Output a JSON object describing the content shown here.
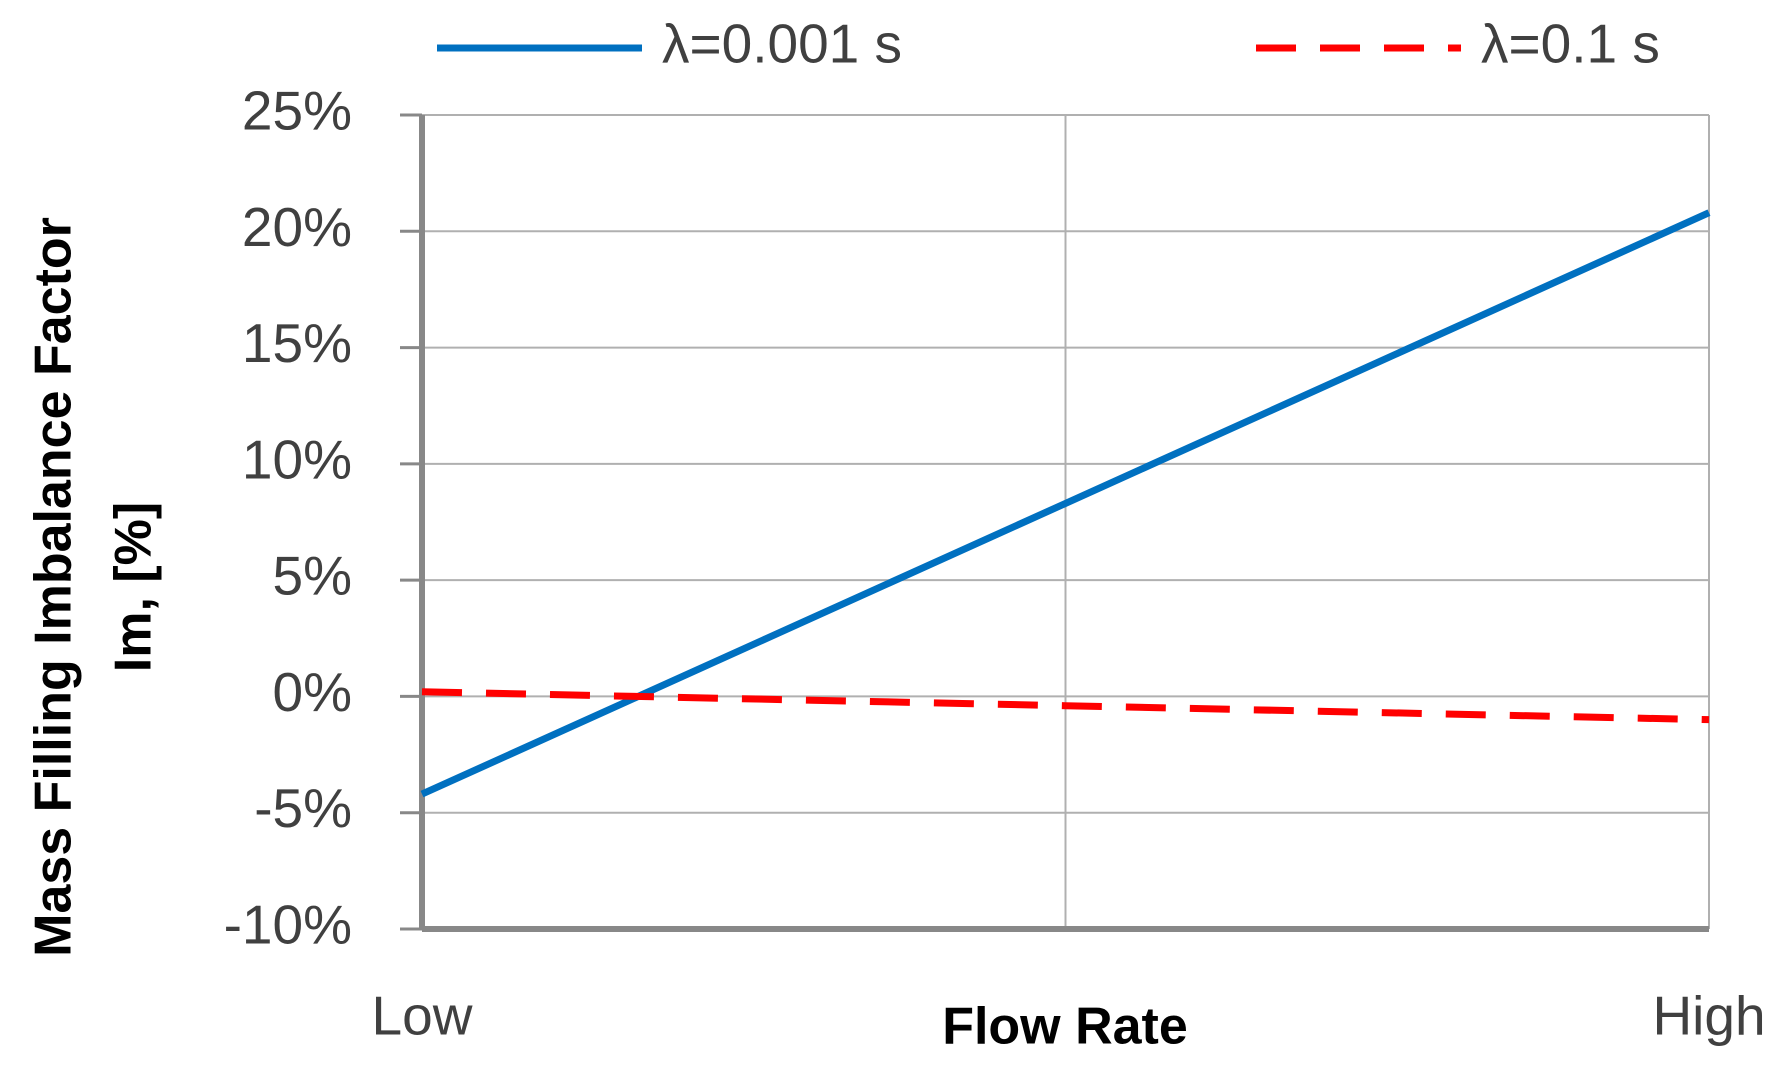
{
  "chart_data": {
    "type": "line",
    "x_label": "Flow Rate",
    "y_label": [
      "Mass Filling Imbalance Factor",
      "Im, [%]"
    ],
    "categories": [
      "Low",
      null,
      "High"
    ],
    "series": [
      {
        "name": "λ=0.001 s",
        "color": "#0070c0",
        "dash": "solid",
        "values": [
          -4.2,
          8.3,
          20.8
        ]
      },
      {
        "name": "λ=0.1 s",
        "color": "#ff0000",
        "dash": "dashed",
        "values": [
          0.2,
          -0.4,
          -1.0
        ]
      }
    ],
    "ylim": [
      -10,
      25
    ],
    "yticks": [
      {
        "value": -10,
        "label": "-10%"
      },
      {
        "value": -5,
        "label": "-5%"
      },
      {
        "value": 0,
        "label": "0%"
      },
      {
        "value": 5,
        "label": "5%"
      },
      {
        "value": 10,
        "label": "10%"
      },
      {
        "value": 15,
        "label": "15%"
      },
      {
        "value": 20,
        "label": "20%"
      },
      {
        "value": 25,
        "label": "25%"
      }
    ],
    "grid": true,
    "legend": "top"
  }
}
